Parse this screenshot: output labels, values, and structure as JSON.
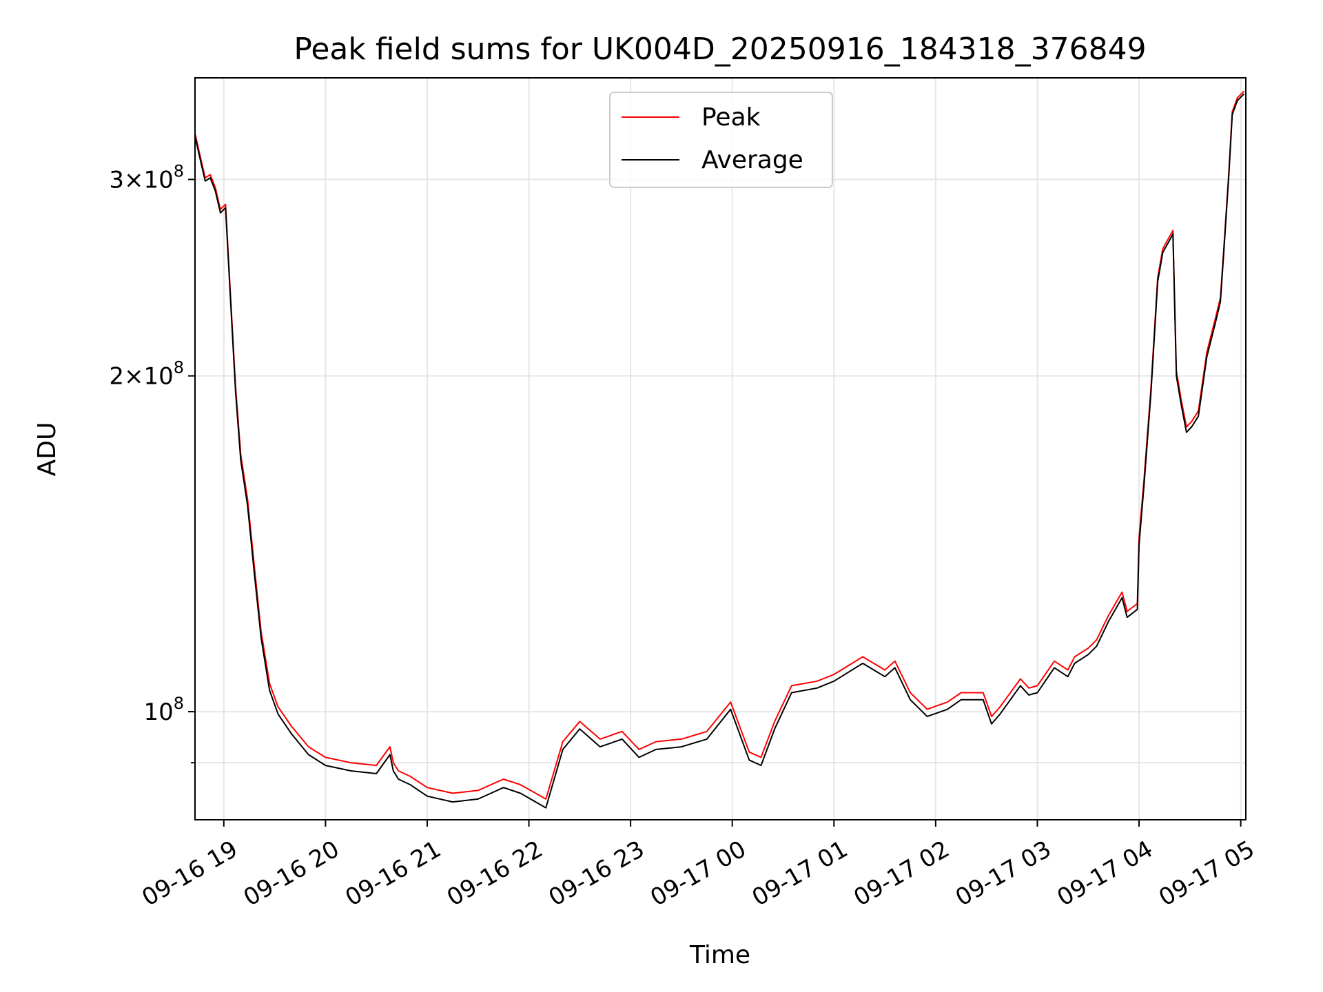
{
  "chart_data": {
    "type": "line",
    "title": "Peak field sums for UK004D_20250916_184318_376849",
    "xlabel": "Time",
    "ylabel": "ADU",
    "y_scale": "log",
    "ylim": [
      80000000,
      370000000
    ],
    "xlim": [
      "2025-09-16 18:43",
      "2025-09-17 05:03"
    ],
    "grid": true,
    "legend_position": "top-center",
    "x_ticks": [
      {
        "t": "2025-09-16 19:00",
        "label": "09-16 19"
      },
      {
        "t": "2025-09-16 20:00",
        "label": "09-16 20"
      },
      {
        "t": "2025-09-16 21:00",
        "label": "09-16 21"
      },
      {
        "t": "2025-09-16 22:00",
        "label": "09-16 22"
      },
      {
        "t": "2025-09-16 23:00",
        "label": "09-16 23"
      },
      {
        "t": "2025-09-17 00:00",
        "label": "09-17 00"
      },
      {
        "t": "2025-09-17 01:00",
        "label": "09-17 01"
      },
      {
        "t": "2025-09-17 02:00",
        "label": "09-17 02"
      },
      {
        "t": "2025-09-17 03:00",
        "label": "09-17 03"
      },
      {
        "t": "2025-09-17 04:00",
        "label": "09-17 04"
      },
      {
        "t": "2025-09-17 05:00",
        "label": "09-17 05"
      }
    ],
    "y_major_ticks": [
      {
        "value": 100000000,
        "base": "10",
        "coef": "",
        "exp": "8"
      },
      {
        "value": 200000000,
        "base": "10",
        "coef": "2",
        "exp": "8"
      },
      {
        "value": 300000000,
        "base": "10",
        "coef": "3",
        "exp": "8"
      }
    ],
    "y_minor_ticks": [
      90000000
    ],
    "series": [
      {
        "name": "Peak",
        "color": "#ff0000",
        "x": [
          "2025-09-16 18:43",
          "2025-09-16 18:46",
          "2025-09-16 18:49",
          "2025-09-16 18:52",
          "2025-09-16 18:55",
          "2025-09-16 18:58",
          "2025-09-16 19:01",
          "2025-09-16 19:04",
          "2025-09-16 19:07",
          "2025-09-16 19:10",
          "2025-09-16 19:14",
          "2025-09-16 19:18",
          "2025-09-16 19:22",
          "2025-09-16 19:27",
          "2025-09-16 19:32",
          "2025-09-16 19:40",
          "2025-09-16 19:50",
          "2025-09-16 20:00",
          "2025-09-16 20:15",
          "2025-09-16 20:30",
          "2025-09-16 20:38",
          "2025-09-16 20:40",
          "2025-09-16 20:43",
          "2025-09-16 20:50",
          "2025-09-16 21:00",
          "2025-09-16 21:15",
          "2025-09-16 21:30",
          "2025-09-16 21:45",
          "2025-09-16 21:55",
          "2025-09-16 22:10",
          "2025-09-16 22:20",
          "2025-09-16 22:30",
          "2025-09-16 22:42",
          "2025-09-16 22:55",
          "2025-09-16 23:05",
          "2025-09-16 23:15",
          "2025-09-16 23:30",
          "2025-09-16 23:45",
          "2025-09-16 23:59",
          "2025-09-17 00:10",
          "2025-09-17 00:17",
          "2025-09-17 00:25",
          "2025-09-17 00:35",
          "2025-09-17 00:50",
          "2025-09-17 01:00",
          "2025-09-17 01:17",
          "2025-09-17 01:30",
          "2025-09-17 01:36",
          "2025-09-17 01:45",
          "2025-09-17 01:55",
          "2025-09-17 02:07",
          "2025-09-17 02:15",
          "2025-09-17 02:28",
          "2025-09-17 02:33",
          "2025-09-17 02:38",
          "2025-09-17 02:50",
          "2025-09-17 02:55",
          "2025-09-17 03:00",
          "2025-09-17 03:10",
          "2025-09-17 03:18",
          "2025-09-17 03:22",
          "2025-09-17 03:30",
          "2025-09-17 03:35",
          "2025-09-17 03:42",
          "2025-09-17 03:50",
          "2025-09-17 03:53",
          "2025-09-17 03:59",
          "2025-09-17 04:00",
          "2025-09-17 04:03",
          "2025-09-17 04:07",
          "2025-09-17 04:11",
          "2025-09-17 04:14",
          "2025-09-17 04:17",
          "2025-09-17 04:20",
          "2025-09-17 04:22",
          "2025-09-17 04:25",
          "2025-09-17 04:28",
          "2025-09-17 04:31",
          "2025-09-17 04:35",
          "2025-09-17 04:40",
          "2025-09-17 04:45",
          "2025-09-17 04:48",
          "2025-09-17 04:50",
          "2025-09-17 04:53",
          "2025-09-17 04:55",
          "2025-09-17 04:58",
          "2025-09-17 05:02"
        ],
        "y": [
          330000000,
          315000000,
          301000000,
          303000000,
          295000000,
          282000000,
          285000000,
          235000000,
          195000000,
          170000000,
          155000000,
          135000000,
          118000000,
          106000000,
          101000000,
          97000000,
          93000000,
          91000000,
          90000000,
          89500000,
          93000000,
          90000000,
          88500000,
          87500000,
          85500000,
          84500000,
          85000000,
          87000000,
          86000000,
          83500000,
          94000000,
          98000000,
          94500000,
          96000000,
          92500000,
          94000000,
          94500000,
          96000000,
          102000000,
          92000000,
          91000000,
          98000000,
          105500000,
          106500000,
          108000000,
          112000000,
          109000000,
          111000000,
          104000000,
          100500000,
          102000000,
          104000000,
          104000000,
          99000000,
          101000000,
          107000000,
          105000000,
          105500000,
          111000000,
          109000000,
          112000000,
          114000000,
          116000000,
          122000000,
          128000000,
          123000000,
          125000000,
          143000000,
          162000000,
          195000000,
          245000000,
          260000000,
          265000000,
          270000000,
          202000000,
          190000000,
          180000000,
          182000000,
          186000000,
          210000000,
          225000000,
          235000000,
          260000000,
          305000000,
          345000000,
          355000000,
          360000000
        ]
      },
      {
        "name": "Average",
        "color": "#000000",
        "x": [
          "2025-09-16 18:43",
          "2025-09-16 18:46",
          "2025-09-16 18:49",
          "2025-09-16 18:52",
          "2025-09-16 18:55",
          "2025-09-16 18:58",
          "2025-09-16 19:01",
          "2025-09-16 19:04",
          "2025-09-16 19:07",
          "2025-09-16 19:10",
          "2025-09-16 19:14",
          "2025-09-16 19:18",
          "2025-09-16 19:22",
          "2025-09-16 19:27",
          "2025-09-16 19:32",
          "2025-09-16 19:40",
          "2025-09-16 19:50",
          "2025-09-16 20:00",
          "2025-09-16 20:15",
          "2025-09-16 20:30",
          "2025-09-16 20:38",
          "2025-09-16 20:40",
          "2025-09-16 20:43",
          "2025-09-16 20:50",
          "2025-09-16 21:00",
          "2025-09-16 21:15",
          "2025-09-16 21:30",
          "2025-09-16 21:45",
          "2025-09-16 21:55",
          "2025-09-16 22:10",
          "2025-09-16 22:20",
          "2025-09-16 22:30",
          "2025-09-16 22:42",
          "2025-09-16 22:55",
          "2025-09-16 23:05",
          "2025-09-16 23:15",
          "2025-09-16 23:30",
          "2025-09-16 23:45",
          "2025-09-16 23:59",
          "2025-09-17 00:10",
          "2025-09-17 00:17",
          "2025-09-17 00:25",
          "2025-09-17 00:35",
          "2025-09-17 00:50",
          "2025-09-17 01:00",
          "2025-09-17 01:17",
          "2025-09-17 01:30",
          "2025-09-17 01:36",
          "2025-09-17 01:45",
          "2025-09-17 01:55",
          "2025-09-17 02:07",
          "2025-09-17 02:15",
          "2025-09-17 02:28",
          "2025-09-17 02:33",
          "2025-09-17 02:38",
          "2025-09-17 02:50",
          "2025-09-17 02:55",
          "2025-09-17 03:00",
          "2025-09-17 03:10",
          "2025-09-17 03:18",
          "2025-09-17 03:22",
          "2025-09-17 03:30",
          "2025-09-17 03:35",
          "2025-09-17 03:42",
          "2025-09-17 03:50",
          "2025-09-17 03:53",
          "2025-09-17 03:59",
          "2025-09-17 04:00",
          "2025-09-17 04:03",
          "2025-09-17 04:07",
          "2025-09-17 04:11",
          "2025-09-17 04:14",
          "2025-09-17 04:17",
          "2025-09-17 04:20",
          "2025-09-17 04:22",
          "2025-09-17 04:25",
          "2025-09-17 04:28",
          "2025-09-17 04:31",
          "2025-09-17 04:35",
          "2025-09-17 04:40",
          "2025-09-17 04:45",
          "2025-09-17 04:48",
          "2025-09-17 04:50",
          "2025-09-17 04:53",
          "2025-09-17 04:55",
          "2025-09-17 04:58",
          "2025-09-17 05:02"
        ],
        "y": [
          328000000,
          313000000,
          299000000,
          301000000,
          293000000,
          280000000,
          283000000,
          233000000,
          193000000,
          168000000,
          153000000,
          133000000,
          116500000,
          104500000,
          99500000,
          95500000,
          91500000,
          89500000,
          88500000,
          88000000,
          91500000,
          88500000,
          87000000,
          86000000,
          84000000,
          83000000,
          83500000,
          85500000,
          84500000,
          82000000,
          92500000,
          96500000,
          93000000,
          94500000,
          91000000,
          92500000,
          93000000,
          94500000,
          100500000,
          90500000,
          89500000,
          96500000,
          104000000,
          105000000,
          106500000,
          110500000,
          107500000,
          109500000,
          102500000,
          99000000,
          100500000,
          102500000,
          102500000,
          97500000,
          99500000,
          105500000,
          103500000,
          104000000,
          109500000,
          107500000,
          110500000,
          112500000,
          114500000,
          120500000,
          126500000,
          121500000,
          123500000,
          141000000,
          160000000,
          193000000,
          243000000,
          258000000,
          263000000,
          268000000,
          200000000,
          188000000,
          178000000,
          180000000,
          184000000,
          208000000,
          223000000,
          233000000,
          258000000,
          303000000,
          343000000,
          353000000,
          358000000
        ]
      }
    ]
  }
}
